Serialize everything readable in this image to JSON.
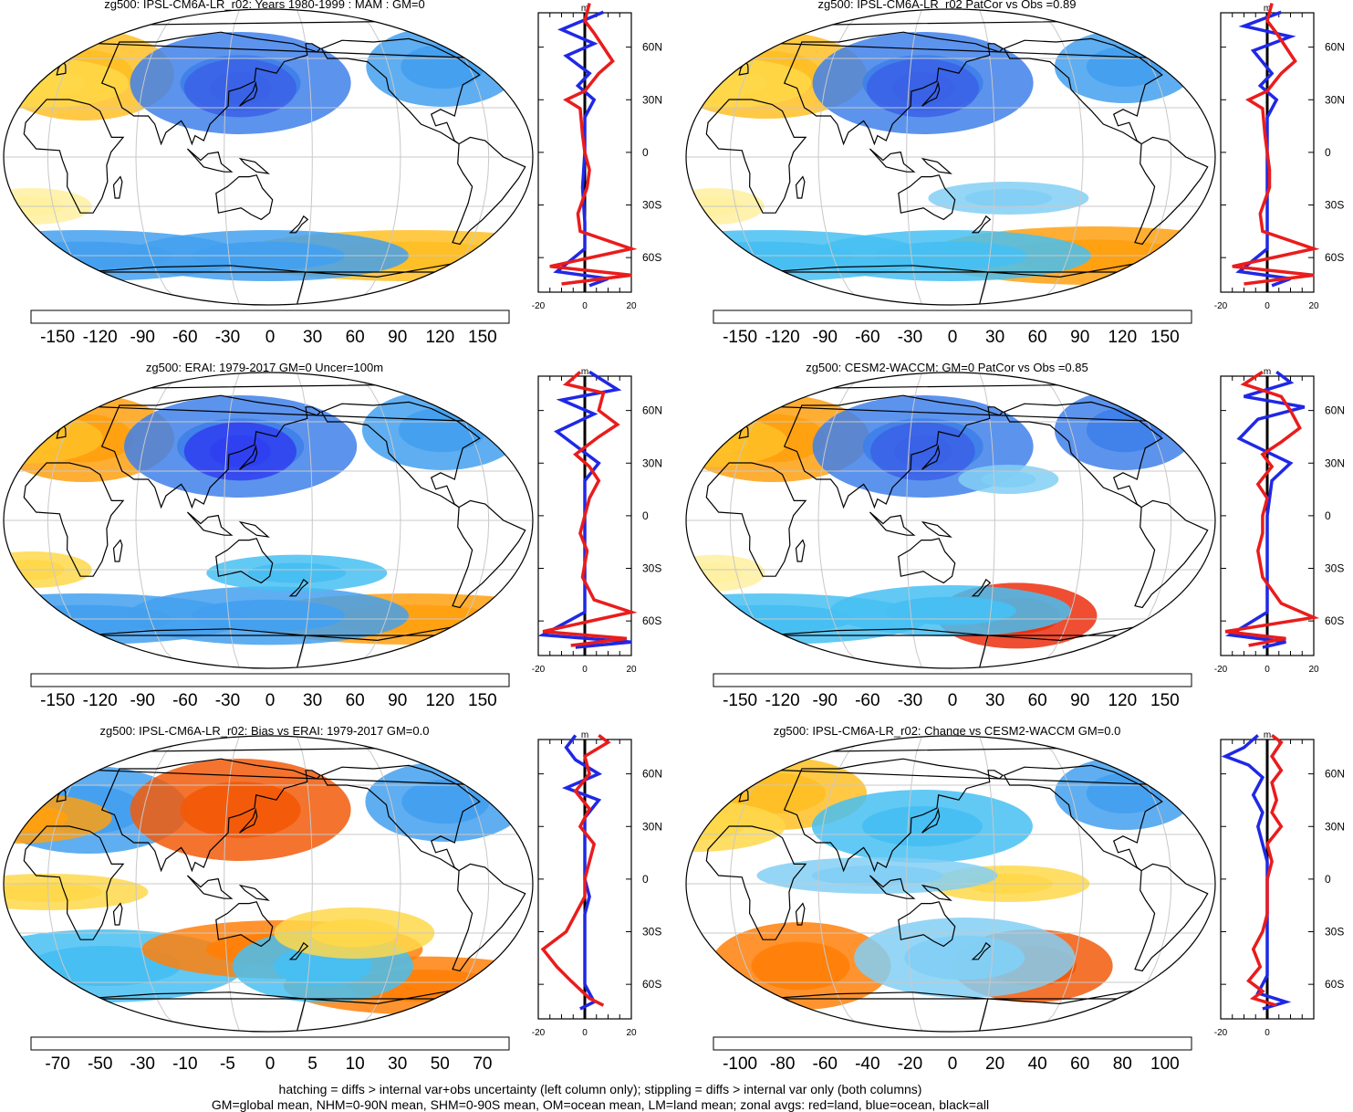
{
  "colors": {
    "cmap": [
      "#3a1aff",
      "#2f40f0",
      "#3a62e6",
      "#3f80ea",
      "#43a0ef",
      "#47bff2",
      "#82cff4",
      "#b4e1f7",
      "#ffffff",
      "#ffffff",
      "#fff0a0",
      "#ffd84a",
      "#ffbf26",
      "#ffa010",
      "#ff800a",
      "#f25a0a",
      "#ec2f0e",
      "#d1120e"
    ],
    "land": "#ea1c1c",
    "ocean": "#1f28e6",
    "all": "#000000",
    "grid": "#c8c8c8",
    "coast": "#000000"
  },
  "footnotes": {
    "line1": "hatching = diffs > internal var+obs uncertainty (left column only); stippling = diffs > internal var only (both columns)",
    "line2": "GM=global mean, NHM=0-90N mean, SHM=0-90S mean, OM=ocean mean, LM=land mean; zonal avgs: red=land, blue=ocean, black=all"
  },
  "chart_data": [
    {
      "type": "heatmap",
      "title": "zg500: IPSL-CM6A-LR_r02: Years 1980-1999 : MAM : GM=0",
      "colorbar_labels": [
        "-150",
        "-120",
        "-90",
        "-60",
        "-30",
        "0",
        "30",
        "60",
        "90",
        "120",
        "150"
      ],
      "profile": {
        "unit": "m",
        "xlim": [
          -20,
          20
        ],
        "xticks": [
          "-20",
          "0",
          "20"
        ],
        "lat_ticks": [
          "60N",
          "30N",
          "0",
          "30S",
          "60S"
        ]
      }
    },
    {
      "type": "heatmap",
      "title": "zg500: IPSL-CM6A-LR_r02 PatCor vs Obs =0.89",
      "colorbar_labels": [
        "-150",
        "-120",
        "-90",
        "-60",
        "-30",
        "0",
        "30",
        "60",
        "90",
        "120",
        "150"
      ],
      "profile": {
        "unit": "m",
        "xlim": [
          -20,
          20
        ],
        "xticks": [
          "-20",
          "0",
          "20"
        ],
        "lat_ticks": [
          "60N",
          "30N",
          "0",
          "30S",
          "60S"
        ]
      }
    },
    {
      "type": "heatmap",
      "title": "zg500: ERAI: 1979-2017 GM=0 Uncer=100m",
      "colorbar_labels": [
        "-150",
        "-120",
        "-90",
        "-60",
        "-30",
        "0",
        "30",
        "60",
        "90",
        "120",
        "150"
      ],
      "profile": {
        "unit": "m",
        "xlim": [
          -20,
          20
        ],
        "xticks": [
          "-20",
          "0",
          "20"
        ],
        "lat_ticks": [
          "60N",
          "30N",
          "0",
          "30S",
          "60S"
        ]
      }
    },
    {
      "type": "heatmap",
      "title": "zg500: CESM2-WACCM: GM=0 PatCor vs Obs =0.85",
      "colorbar_labels": [
        "-150",
        "-120",
        "-90",
        "-60",
        "-30",
        "0",
        "30",
        "60",
        "90",
        "120",
        "150"
      ],
      "profile": {
        "unit": "m",
        "xlim": [
          -20,
          20
        ],
        "xticks": [
          "-20",
          "0",
          "20"
        ],
        "lat_ticks": [
          "60N",
          "30N",
          "0",
          "30S",
          "60S"
        ]
      }
    },
    {
      "type": "heatmap",
      "title": "zg500: IPSL-CM6A-LR_r02: Bias vs ERAI: 1979-2017 GM=0.0",
      "colorbar_labels": [
        "-70",
        "-50",
        "-30",
        "-10",
        "-5",
        "0",
        "5",
        "10",
        "30",
        "50",
        "70"
      ],
      "profile": {
        "unit": "m",
        "xlim": [
          -20,
          20
        ],
        "xticks": [
          "-20",
          "0",
          "20"
        ],
        "lat_ticks": [
          "60N",
          "30N",
          "0",
          "30S",
          "60S"
        ]
      }
    },
    {
      "type": "heatmap",
      "title": "zg500: IPSL-CM6A-LR_r02: Change vs CESM2-WACCM GM=0.0",
      "colorbar_labels": [
        "-100",
        "-80",
        "-60",
        "-40",
        "-20",
        "0",
        "20",
        "40",
        "60",
        "80",
        "100"
      ],
      "profile": {
        "unit": "m",
        "xlim": [
          -20,
          20
        ],
        "xticks": [
          "-20",
          "0"
        ],
        "lat_ticks": [
          "60N",
          "30N",
          "0",
          "30S",
          "60S"
        ]
      }
    }
  ]
}
